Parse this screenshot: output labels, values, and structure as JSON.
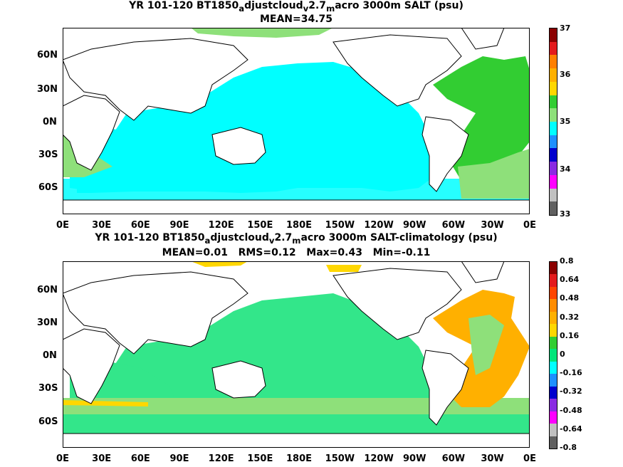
{
  "panel_top": {
    "title_line1": "YR 101-120 BT1850",
    "title_sub1": "a",
    "title_mid1": "djustcloud",
    "title_sub2": "v",
    "title_mid2": "2.7",
    "title_sub3": "m",
    "title_tail": "acro 3000m SALT (psu)",
    "stats": "MEAN=34.75",
    "colorbar_labels": [
      "37",
      "36",
      "35",
      "34",
      "33"
    ],
    "colorbar_colors": [
      "#8b0000",
      "#e31a1c",
      "#ff7f00",
      "#ffb000",
      "#ffd700",
      "#32cd32",
      "#8ee07a",
      "#00ffff",
      "#1e90ff",
      "#0000cd",
      "#8a2be2",
      "#ff00ff",
      "#c0c0c0",
      "#606060"
    ]
  },
  "panel_bottom": {
    "title_line1": "YR 101-120 BT1850",
    "title_sub1": "a",
    "title_mid1": "djustcloud",
    "title_sub2": "v",
    "title_mid2": "2.7",
    "title_sub3": "m",
    "title_tail": "acro 3000m SALT-climatology (psu)",
    "stats": "MEAN=0.01   RMS=0.12   Max=0.43   Min=-0.11",
    "colorbar_labels": [
      "0.8",
      "0.64",
      "0.48",
      "0.32",
      "0.16",
      "0",
      "-0.16",
      "-0.32",
      "-0.48",
      "-0.64",
      "-0.8"
    ],
    "colorbar_colors": [
      "#8b0000",
      "#e31a1c",
      "#ff4500",
      "#ff8c00",
      "#ffb000",
      "#ffd700",
      "#32cd32",
      "#00e57a",
      "#00ffff",
      "#1e90ff",
      "#0000cd",
      "#8a2be2",
      "#ff00ff",
      "#c0c0c0",
      "#606060"
    ]
  },
  "axes": {
    "x_ticks": [
      "0E",
      "30E",
      "60E",
      "90E",
      "120E",
      "150E",
      "180E",
      "150W",
      "120W",
      "90W",
      "60W",
      "30W",
      "0E"
    ],
    "y_ticks": [
      "60N",
      "30N",
      "0N",
      "30S",
      "60S"
    ]
  },
  "colors": {
    "top_pacific": "#00ffff",
    "top_atlantic": "#32cd32",
    "top_southern": "#8ee07a",
    "bottom_pacific": "#33e68a",
    "bottom_atlantic": "#ffb000",
    "bottom_southern": "#8ee07a"
  }
}
